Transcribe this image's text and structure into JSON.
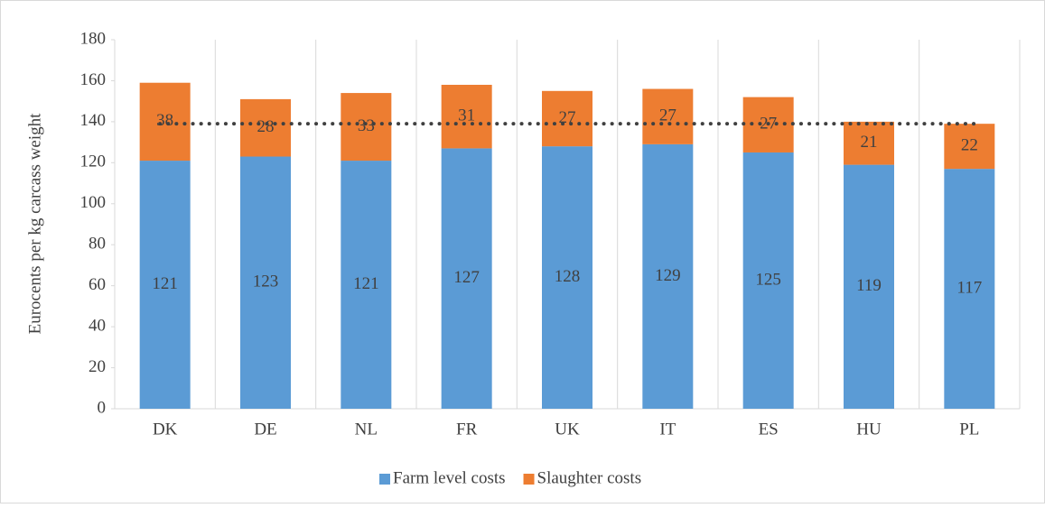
{
  "chart_data": {
    "type": "stacked_bar",
    "y_label": "Eurocents per kg carcass weight",
    "categories": [
      "DK",
      "DE",
      "NL",
      "FR",
      "UK",
      "IT",
      "ES",
      "HU",
      "PL"
    ],
    "series": [
      {
        "name": "Farm level costs",
        "color": "#5b9bd5",
        "values": [
          121,
          123,
          121,
          127,
          128,
          129,
          125,
          119,
          117
        ]
      },
      {
        "name": "Slaughter costs",
        "color": "#ed7d31",
        "values": [
          38,
          28,
          33,
          31,
          27,
          27,
          27,
          21,
          22
        ]
      }
    ],
    "reference_line": 139,
    "ylim": [
      0,
      180
    ],
    "yticks": [
      0,
      20,
      40,
      60,
      80,
      100,
      120,
      140,
      160,
      180
    ],
    "grid": true,
    "legend": "bottom"
  }
}
